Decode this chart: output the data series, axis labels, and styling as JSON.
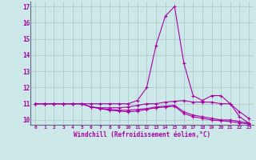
{
  "xlabel": "Windchill (Refroidissement éolien,°C)",
  "xlim": [
    -0.5,
    23.5
  ],
  "ylim": [
    9.7,
    17.3
  ],
  "yticks": [
    10,
    11,
    12,
    13,
    14,
    15,
    16,
    17
  ],
  "xticks": [
    0,
    1,
    2,
    3,
    4,
    5,
    6,
    7,
    8,
    9,
    10,
    11,
    12,
    13,
    14,
    15,
    16,
    17,
    18,
    19,
    20,
    21,
    22,
    23
  ],
  "bg_color": "#cce8e8",
  "line_color": "#aa00aa",
  "grid_color": "#b0c8c8",
  "series": [
    [
      11.0,
      11.0,
      11.0,
      11.0,
      11.0,
      11.0,
      11.0,
      11.0,
      11.0,
      11.0,
      11.0,
      11.2,
      12.0,
      14.6,
      16.4,
      17.0,
      13.5,
      11.5,
      11.2,
      11.5,
      11.5,
      11.0,
      10.2,
      9.8
    ],
    [
      11.0,
      11.0,
      11.0,
      11.0,
      11.0,
      11.0,
      10.8,
      10.75,
      10.75,
      10.75,
      10.8,
      10.9,
      11.0,
      11.0,
      11.1,
      11.15,
      11.2,
      11.1,
      11.1,
      11.1,
      11.0,
      11.0,
      10.5,
      10.1
    ],
    [
      11.0,
      11.0,
      11.0,
      11.0,
      11.0,
      11.0,
      10.8,
      10.7,
      10.65,
      10.6,
      10.6,
      10.65,
      10.7,
      10.8,
      10.85,
      10.9,
      10.5,
      10.3,
      10.2,
      10.1,
      10.0,
      10.0,
      9.9,
      9.8
    ],
    [
      11.0,
      11.0,
      11.0,
      11.0,
      11.0,
      11.0,
      10.8,
      10.7,
      10.6,
      10.55,
      10.5,
      10.55,
      10.65,
      10.75,
      10.8,
      10.85,
      10.4,
      10.2,
      10.1,
      10.0,
      9.95,
      9.9,
      9.82,
      9.75
    ]
  ]
}
